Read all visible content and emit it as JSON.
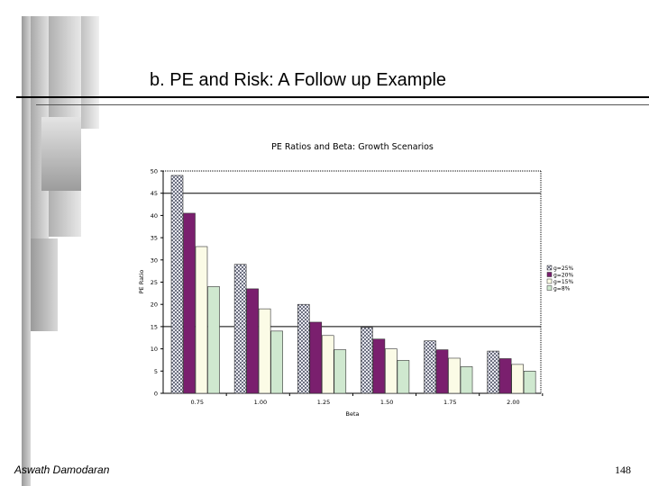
{
  "slide": {
    "title": "b. PE and Risk: A Follow up Example",
    "footer_author": "Aswath Damodaran",
    "page_number": "148"
  },
  "chart_data": {
    "type": "bar",
    "title": "PE Ratios and Beta: Growth Scenarios",
    "xlabel": "Beta",
    "ylabel": "PE Ratio",
    "ylim": [
      0,
      50
    ],
    "yticks": [
      "0",
      "5",
      "10",
      "15",
      "20",
      "25",
      "30",
      "35",
      "40",
      "45",
      "50"
    ],
    "categories": [
      "0.75",
      "1.00",
      "1.25",
      "1.50",
      "1.75",
      "2.00"
    ],
    "legend_position": "right",
    "series": [
      {
        "name": "g=25%",
        "color": "#b8bcc8",
        "values": [
          49,
          29,
          20,
          14.8,
          11.8,
          9.5
        ]
      },
      {
        "name": "g=20%",
        "color": "#7a1f6e",
        "values": [
          40.5,
          23.5,
          16,
          12.2,
          9.8,
          7.8
        ]
      },
      {
        "name": "g=15%",
        "color": "#fbfbe6",
        "values": [
          33,
          19,
          13,
          10,
          7.9,
          6.5
        ]
      },
      {
        "name": "g=8%",
        "color": "#cfe8cf",
        "values": [
          24,
          14,
          9.8,
          7.4,
          6,
          5
        ]
      }
    ]
  }
}
